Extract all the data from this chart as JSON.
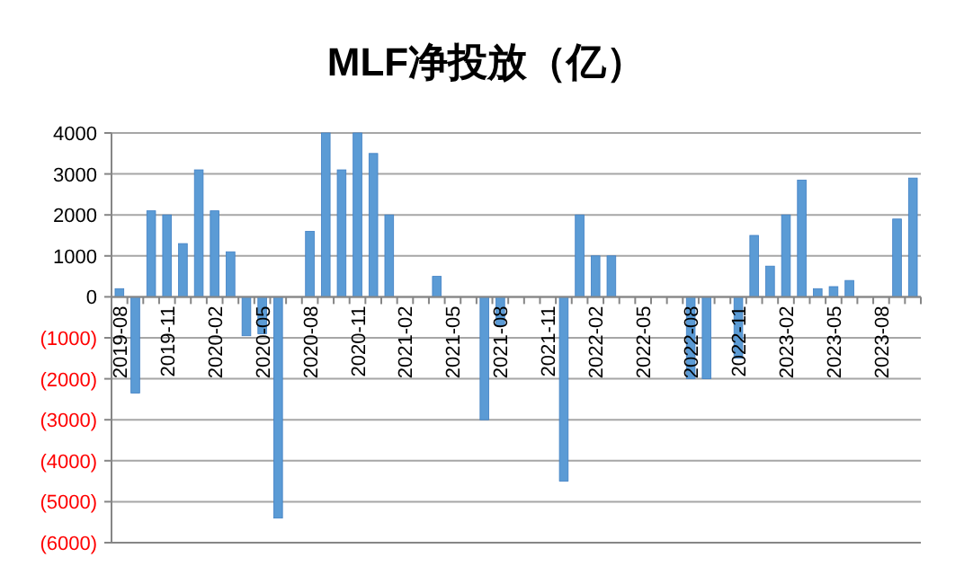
{
  "chart_data": {
    "type": "bar",
    "title": "MLF净投放（亿）",
    "categories": [
      "2019-08",
      null,
      null,
      "2019-11",
      null,
      null,
      "2020-02",
      null,
      null,
      "2020-05",
      null,
      null,
      "2020-08",
      null,
      null,
      "2020-11",
      null,
      null,
      "2021-02",
      null,
      null,
      "2021-05",
      null,
      null,
      "2021-08",
      null,
      null,
      "2021-11",
      null,
      null,
      "2022-02",
      null,
      null,
      "2022-05",
      null,
      null,
      "2022-08",
      null,
      null,
      "2022-11",
      null,
      null,
      "2023-02",
      null,
      null,
      "2023-05",
      null,
      null,
      "2023-08",
      null,
      null
    ],
    "values": [
      200,
      -2350,
      2100,
      2000,
      1300,
      3100,
      2100,
      1100,
      -950,
      -900,
      -5400,
      0,
      1600,
      4000,
      3100,
      4000,
      3500,
      2000,
      0,
      0,
      500,
      0,
      0,
      -3000,
      -700,
      0,
      0,
      0,
      -4500,
      2000,
      1000,
      1000,
      0,
      0,
      0,
      0,
      -2000,
      -2000,
      0,
      -1500,
      1500,
      750,
      2000,
      2850,
      200,
      250,
      400,
      0,
      0,
      1900,
      2900
    ],
    "color": "#5b9bd5",
    "ylim": [
      -6000,
      4000
    ],
    "yticks": [
      {
        "value": -6000,
        "label": "(6000)"
      },
      {
        "value": -5000,
        "label": "(5000)"
      },
      {
        "value": -4000,
        "label": "(4000)"
      },
      {
        "value": -3000,
        "label": "(3000)"
      },
      {
        "value": -2000,
        "label": "(2000)"
      },
      {
        "value": -1000,
        "label": "(1000)"
      },
      0,
      1000,
      2000,
      3000,
      4000
    ],
    "grid": "y"
  }
}
